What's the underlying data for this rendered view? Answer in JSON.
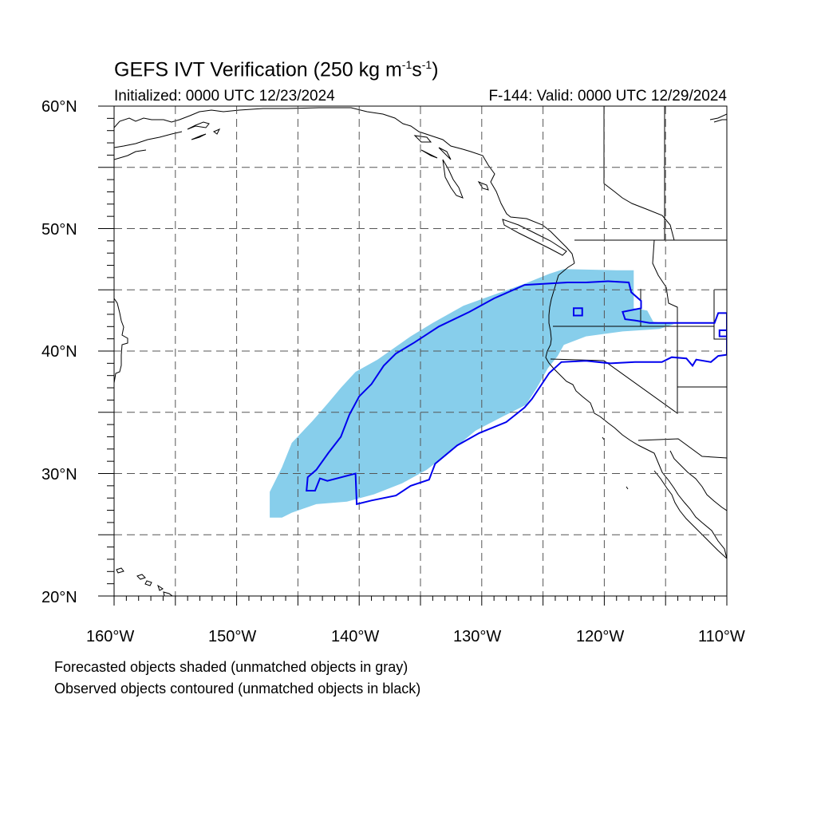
{
  "title": "GEFS IVT Verification (250 kg m",
  "title_sup1": "-1",
  "title_mid": "s",
  "title_sup2": "-1",
  "title_end": ")",
  "initialized": "Initialized: 0000 UTC 12/23/2024",
  "valid": "F-144: Valid: 0000 UTC 12/29/2024",
  "lat_labels": [
    "60°N",
    "50°N",
    "40°N",
    "30°N",
    "20°N"
  ],
  "lon_labels": [
    "160°W",
    "150°W",
    "140°W",
    "130°W",
    "120°W",
    "110°W"
  ],
  "notes": {
    "line1": "Forecasted objects shaded (unmatched objects in gray)",
    "line2": "Observed objects contoured (unmatched objects in black)"
  },
  "map_extent": {
    "lon_min": -160,
    "lon_max": -110,
    "lat_min": 20,
    "lat_max": 60,
    "grid_step_deg": 5
  },
  "colors": {
    "forecast_fill": "#87CEEB",
    "observed_contour": "#0000ee",
    "coastline": "#000000",
    "grid": "#555555"
  },
  "forecast_object": {
    "units": "lon/lat degrees",
    "polygon": [
      [
        -147.3,
        26.4
      ],
      [
        -147.3,
        28.5
      ],
      [
        -146.3,
        30.5
      ],
      [
        -145.5,
        32.5
      ],
      [
        -143.8,
        34.3
      ],
      [
        -142.5,
        35.8
      ],
      [
        -141.5,
        37.0
      ],
      [
        -140.3,
        38.3
      ],
      [
        -138.5,
        39.3
      ],
      [
        -135.8,
        41.2
      ],
      [
        -134.0,
        42.3
      ],
      [
        -131.5,
        43.7
      ],
      [
        -129.0,
        44.6
      ],
      [
        -126.5,
        45.5
      ],
      [
        -124.5,
        46.3
      ],
      [
        -123.3,
        46.7
      ],
      [
        -119.0,
        46.6
      ],
      [
        -117.6,
        46.6
      ],
      [
        -117.6,
        43.5
      ],
      [
        -116.5,
        43.3
      ],
      [
        -116.0,
        42.4
      ],
      [
        -114.3,
        42.2
      ],
      [
        -115.5,
        41.8
      ],
      [
        -118.5,
        41.6
      ],
      [
        -121.5,
        41.2
      ],
      [
        -123.3,
        40.5
      ],
      [
        -123.8,
        39.6
      ],
      [
        -124.6,
        38.6
      ],
      [
        -125.5,
        37.0
      ],
      [
        -126.4,
        35.6
      ],
      [
        -128.2,
        34.7
      ],
      [
        -130.5,
        33.5
      ],
      [
        -132.8,
        31.6
      ],
      [
        -134.5,
        30.3
      ],
      [
        -136.5,
        29.2
      ],
      [
        -138.8,
        28.3
      ],
      [
        -141.0,
        27.7
      ],
      [
        -143.5,
        27.5
      ],
      [
        -145.5,
        26.8
      ],
      [
        -146.3,
        26.4
      ]
    ]
  },
  "observed_object": {
    "units": "lon/lat degrees",
    "polygon": [
      [
        -144.0,
        28.6
      ],
      [
        -143.6,
        28.6
      ],
      [
        -143.2,
        29.6
      ],
      [
        -142.6,
        29.4
      ],
      [
        -140.3,
        30.0
      ],
      [
        -140.2,
        27.5
      ],
      [
        -139.0,
        27.8
      ],
      [
        -137.0,
        28.2
      ],
      [
        -135.8,
        29.0
      ],
      [
        -134.3,
        29.5
      ],
      [
        -133.8,
        30.8
      ],
      [
        -132.0,
        32.3
      ],
      [
        -130.2,
        33.3
      ],
      [
        -128.0,
        34.2
      ],
      [
        -126.5,
        35.4
      ],
      [
        -125.9,
        36.1
      ],
      [
        -124.5,
        38.2
      ],
      [
        -123.5,
        39.1
      ],
      [
        -121.5,
        39.2
      ],
      [
        -119.5,
        39.0
      ],
      [
        -117.5,
        39.1
      ],
      [
        -115.3,
        39.1
      ],
      [
        -114.5,
        39.5
      ],
      [
        -113.3,
        39.4
      ],
      [
        -112.8,
        38.8
      ],
      [
        -112.5,
        39.3
      ],
      [
        -111.3,
        39.1
      ],
      [
        -110.7,
        39.6
      ],
      [
        -110.0,
        39.7
      ],
      [
        -110.0,
        43.1
      ],
      [
        -110.7,
        43.1
      ],
      [
        -111.0,
        42.3
      ],
      [
        -113.0,
        42.3
      ],
      [
        -115.2,
        42.3
      ],
      [
        -116.3,
        42.3
      ],
      [
        -117.5,
        42.5
      ],
      [
        -118.3,
        42.6
      ],
      [
        -118.5,
        43.2
      ],
      [
        -117.0,
        43.5
      ],
      [
        -117.0,
        44.1
      ],
      [
        -117.8,
        44.8
      ],
      [
        -118.0,
        45.6
      ],
      [
        -119.7,
        45.7
      ],
      [
        -121.5,
        45.6
      ],
      [
        -123.0,
        45.6
      ],
      [
        -126.5,
        45.4
      ],
      [
        -129.0,
        44.3
      ],
      [
        -131.0,
        43.2
      ],
      [
        -133.5,
        42.0
      ],
      [
        -135.5,
        40.7
      ],
      [
        -137.0,
        39.8
      ],
      [
        -138.0,
        38.8
      ],
      [
        -139.0,
        37.3
      ],
      [
        -140.0,
        36.3
      ],
      [
        -140.8,
        34.8
      ],
      [
        -141.5,
        33.0
      ],
      [
        -142.5,
        31.7
      ],
      [
        -143.5,
        30.3
      ],
      [
        -144.2,
        29.7
      ],
      [
        -144.3,
        28.6
      ]
    ]
  }
}
